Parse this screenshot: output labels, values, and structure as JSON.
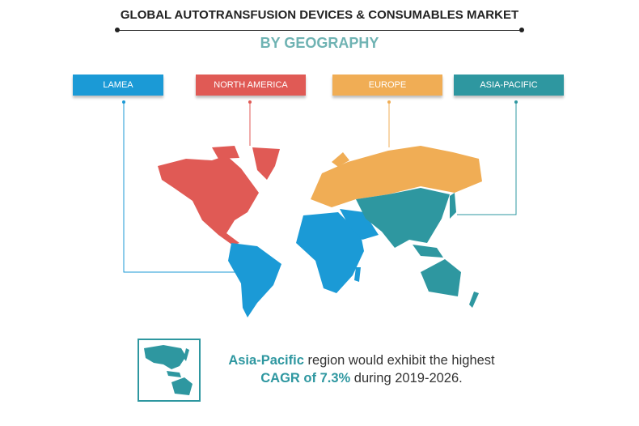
{
  "header": {
    "title": "GLOBAL AUTOTRANSFUSION DEVICES & CONSUMABLES MARKET",
    "subtitle": "BY GEOGRAPHY"
  },
  "regions": [
    {
      "label": "LAMEA",
      "color": "#1b9ad6"
    },
    {
      "label": "NORTH AMERICA",
      "color": "#e05a55"
    },
    {
      "label": "EUROPE",
      "color": "#f0ad55"
    },
    {
      "label": "ASIA-PACIFIC",
      "color": "#2e97a0"
    }
  ],
  "note": {
    "highlight1": "Asia-Pacific",
    "text1": " region would exhibit the highest",
    "highlight2": "CAGR of 7.3%",
    "text2": " during 2019-2026."
  },
  "colors": {
    "subtitle": "#6fb3b3",
    "accent": "#2e97a0"
  }
}
